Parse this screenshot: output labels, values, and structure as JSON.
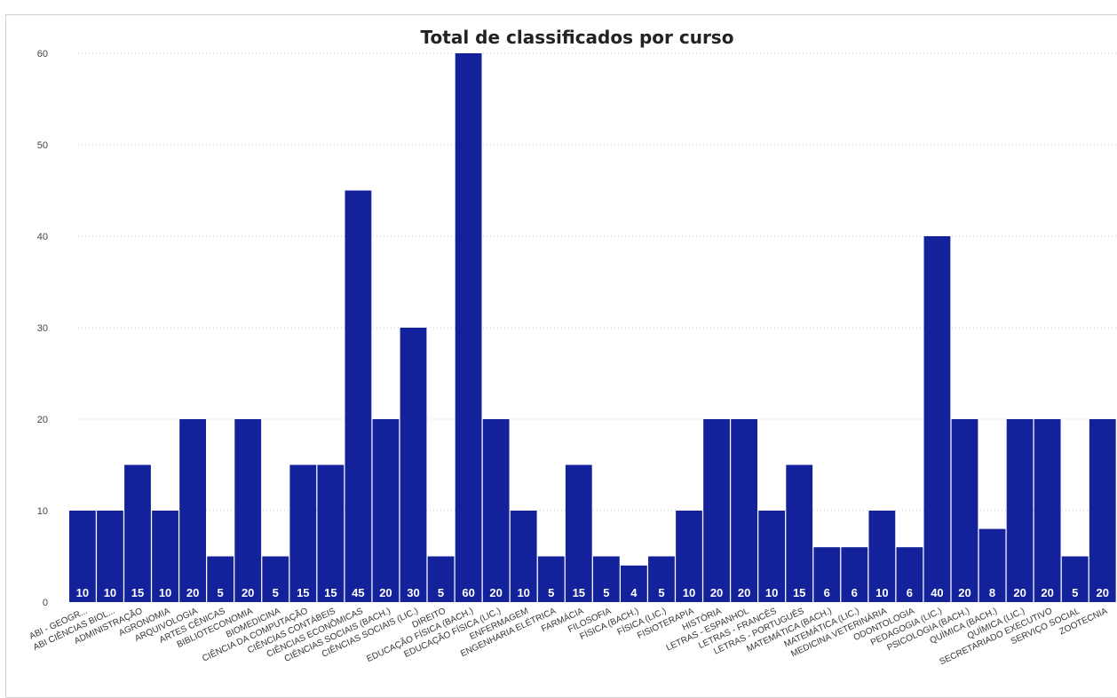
{
  "chart_data": {
    "type": "bar",
    "title": "Total de classificados por curso",
    "xlabel": "",
    "ylabel": "",
    "ylim": [
      0,
      60
    ],
    "yticks": [
      0,
      10,
      20,
      30,
      40,
      50,
      60
    ],
    "grid": true,
    "bar_color": "#13229b",
    "data_label_color": "#ffffff",
    "categories": [
      "ABI - GEOGR...",
      "ABI CIÊNCIAS BIOL...",
      "ADMINISTRAÇÃO",
      "AGRONOMIA",
      "ARQUIVOLOGIA",
      "ARTES CÊNICAS",
      "BIBLIOTECONOMIA",
      "BIOMEDICINA",
      "CIÊNCIA DA COMPUTAÇÃO",
      "CIÊNCIAS CONTÁBEIS",
      "CIÊNCIAS ECONÔMICAS",
      "CIÊNCIAS SOCIAIS (BACH.)",
      "CIÊNCIAS SOCIAIS (LIC.)",
      "DIREITO",
      "EDUCAÇÃO FÍSICA (BACH.)",
      "EDUCAÇÃO FÍSICA (LIC.)",
      "ENFERMAGEM",
      "ENGENHARIA ELÉTRICA",
      "FARMÁCIA",
      "FILOSOFIA",
      "FÍSICA (BACH.)",
      "FÍSICA (LIC.)",
      "FISIOTERAPIA",
      "HISTÓRIA",
      "LETRAS - ESPANHOL",
      "LETRAS - FRANCÊS",
      "LETRAS - PORTUGUÊS",
      "MATEMÁTICA (BACH.)",
      "MATEMÁTICA (LIC.)",
      "MEDICINA VETERINÁRIA",
      "ODONTOLOGIA",
      "PEDAGOGIA (LIC.)",
      "PSICOLOGIA (BACH.)",
      "QUÍMICA (BACH.)",
      "QUÍMICA (LIC.)",
      "SECRETARIADO EXECUTIVO",
      "SERVIÇO SOCIAL",
      "ZOOTECNIA"
    ],
    "values": [
      10,
      10,
      15,
      10,
      20,
      5,
      20,
      5,
      15,
      15,
      45,
      20,
      30,
      5,
      60,
      20,
      10,
      5,
      15,
      5,
      4,
      5,
      10,
      20,
      20,
      10,
      15,
      6,
      6,
      10,
      6,
      40,
      20,
      8,
      20,
      20,
      5,
      20
    ]
  }
}
